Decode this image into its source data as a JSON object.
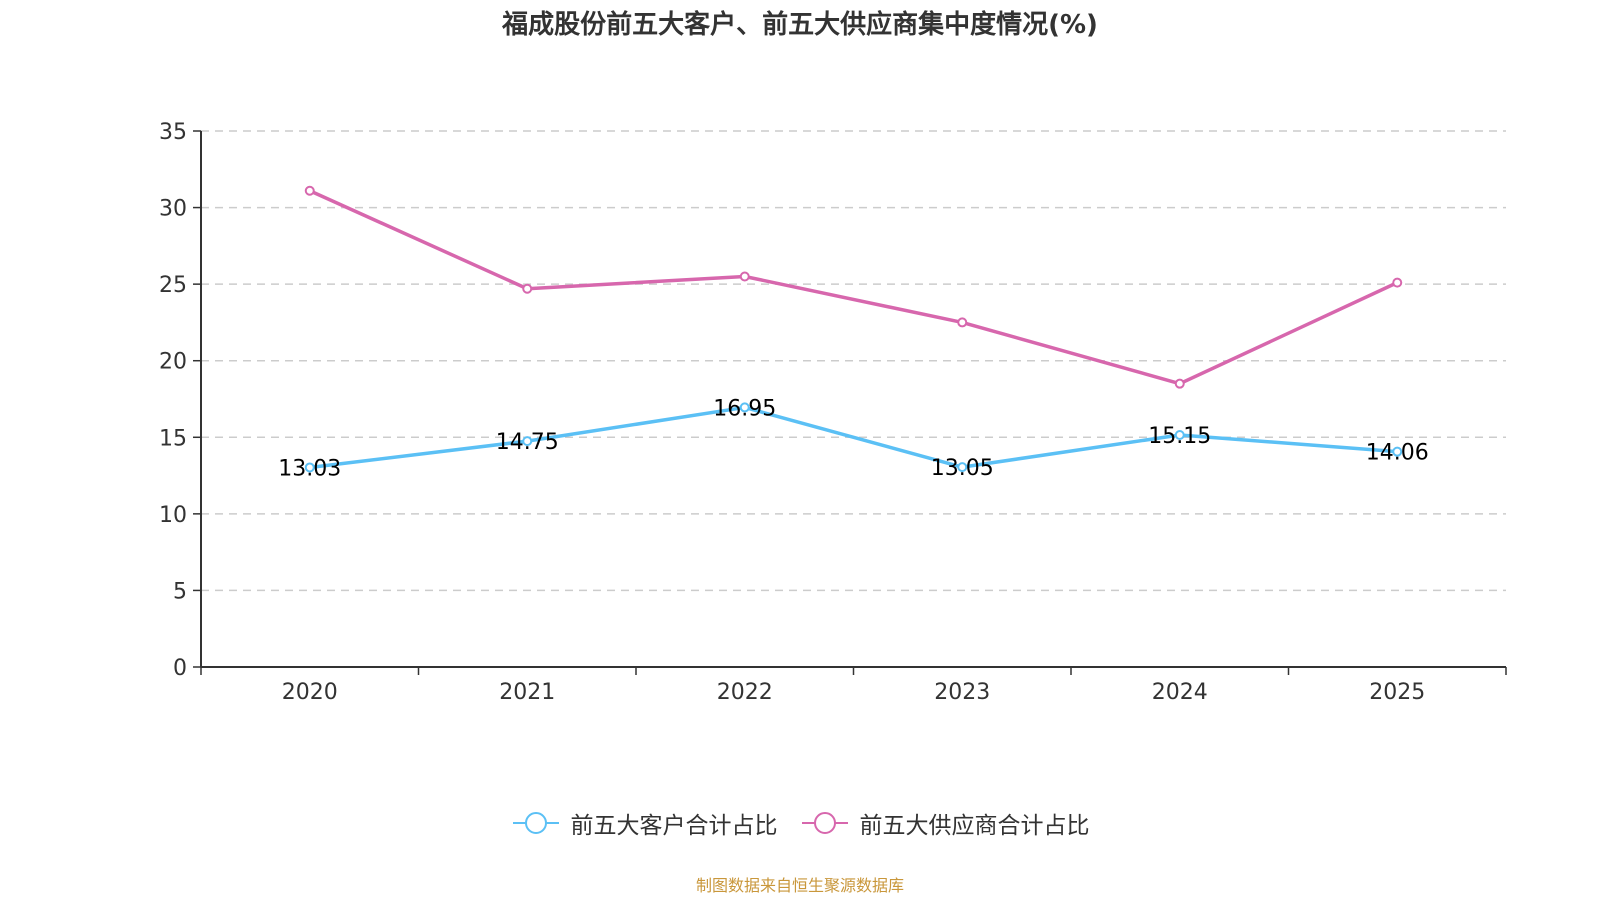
{
  "chart_data": {
    "type": "line",
    "title": "福成股份前五大客户、前五大供应商集中度情况(%)",
    "xlabel": "",
    "ylabel": "",
    "categories": [
      "2020",
      "2021",
      "2022",
      "2023",
      "2024",
      "2025"
    ],
    "ylim": [
      0,
      35
    ],
    "yticks": [
      0,
      5,
      10,
      15,
      20,
      25,
      30,
      35
    ],
    "grid": true,
    "legend_position": "bottom",
    "series": [
      {
        "name": "前五大客户合计占比",
        "color": "#5bc0f5",
        "values": [
          13.03,
          14.75,
          16.95,
          13.05,
          15.15,
          14.06
        ],
        "labels": [
          "13.03",
          "14.75",
          "16.95",
          "13.05",
          "15.15",
          "14.06"
        ],
        "show_labels": true
      },
      {
        "name": "前五大供应商合计占比",
        "color": "#d767ad",
        "values": [
          31.1,
          24.7,
          25.5,
          22.5,
          18.5,
          25.1
        ],
        "show_labels": false
      }
    ]
  },
  "source_note": "制图数据来自恒生聚源数据库"
}
